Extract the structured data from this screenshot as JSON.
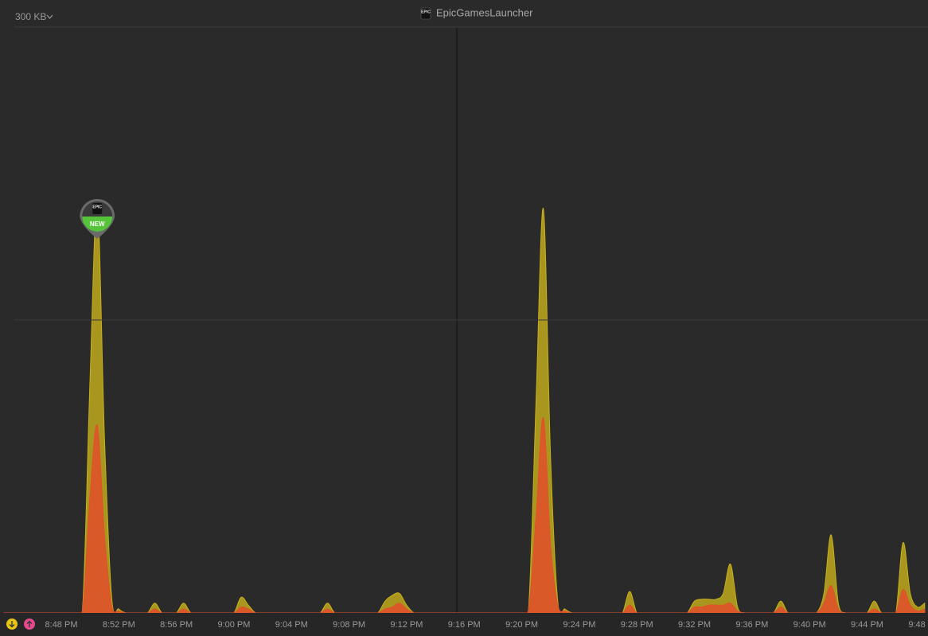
{
  "chart_data": {
    "type": "area",
    "title": "EpicGamesLauncher",
    "title_icon": "EPIC",
    "annotation": {
      "icon": "EPIC",
      "badge": "NEW",
      "index": 13
    },
    "categories": [
      null,
      null,
      null,
      null,
      null,
      null,
      null,
      null,
      "8:48 PM",
      null,
      null,
      null,
      null,
      null,
      null,
      null,
      "8:52 PM",
      null,
      null,
      null,
      null,
      null,
      null,
      null,
      "8:56 PM",
      null,
      null,
      null,
      null,
      null,
      null,
      null,
      "9:00 PM",
      null,
      null,
      null,
      null,
      null,
      null,
      null,
      "9:04 PM",
      null,
      null,
      null,
      null,
      null,
      null,
      null,
      "9:08 PM",
      null,
      null,
      null,
      null,
      null,
      null,
      null,
      "9:12 PM",
      null,
      null,
      null,
      null,
      null,
      null,
      null,
      "9:16 PM",
      null,
      null,
      null,
      null,
      null,
      null,
      null,
      "9:20 PM",
      null,
      null,
      null,
      null,
      null,
      null,
      null,
      "9:24 PM",
      null,
      null,
      null,
      null,
      null,
      null,
      null,
      "9:28 PM",
      null,
      null,
      null,
      null,
      null,
      null,
      null,
      "9:32 PM",
      null,
      null,
      null,
      null,
      null,
      null,
      null,
      "9:36 PM",
      null,
      null,
      null,
      null,
      null,
      null,
      null,
      "9:40 PM",
      null,
      null,
      null,
      null,
      null,
      null,
      null,
      "9:44 PM",
      null,
      null,
      null,
      null,
      null,
      null,
      null,
      "9:48 PM"
    ],
    "series": [
      {
        "color": "#c8b11c",
        "values": [
          0,
          0,
          0,
          0,
          0,
          0,
          0,
          0,
          0,
          0,
          0,
          5,
          120,
          210,
          90,
          8,
          2,
          0,
          0,
          0,
          0,
          5,
          0,
          0,
          0,
          5,
          0,
          0,
          0,
          0,
          0,
          0,
          0,
          8,
          4,
          0,
          0,
          0,
          0,
          0,
          0,
          0,
          0,
          0,
          0,
          5,
          0,
          0,
          0,
          0,
          0,
          0,
          0,
          6,
          9,
          10,
          4,
          0,
          0,
          0,
          0,
          0,
          0,
          0,
          0,
          0,
          0,
          0,
          0,
          0,
          0,
          0,
          0,
          5,
          110,
          207,
          80,
          6,
          2,
          0,
          0,
          0,
          0,
          0,
          0,
          0,
          0,
          11,
          0,
          0,
          0,
          0,
          0,
          0,
          0,
          0,
          6,
          7,
          7,
          7,
          10,
          25,
          3,
          0,
          0,
          0,
          0,
          0,
          6,
          0,
          0,
          0,
          0,
          0,
          10,
          40,
          5,
          0,
          0,
          0,
          0,
          6,
          0,
          0,
          0,
          36,
          10,
          3,
          5
        ]
      },
      {
        "color": "#e2502a",
        "values": [
          0,
          0,
          0,
          0,
          0,
          0,
          0,
          0,
          0,
          0,
          0,
          3,
          60,
          96,
          40,
          4,
          1,
          0,
          0,
          0,
          0,
          2,
          0,
          0,
          0,
          2,
          0,
          0,
          0,
          0,
          0,
          0,
          0,
          3,
          2,
          0,
          0,
          0,
          0,
          0,
          0,
          0,
          0,
          0,
          0,
          2,
          0,
          0,
          0,
          0,
          0,
          0,
          0,
          2,
          3,
          5,
          2,
          0,
          0,
          0,
          0,
          0,
          0,
          0,
          0,
          0,
          0,
          0,
          0,
          0,
          0,
          0,
          0,
          3,
          50,
          100,
          35,
          4,
          1,
          0,
          0,
          0,
          0,
          0,
          0,
          0,
          0,
          4,
          0,
          0,
          0,
          0,
          0,
          0,
          0,
          0,
          3,
          3,
          4,
          4,
          4,
          5,
          1,
          0,
          0,
          0,
          0,
          0,
          3,
          0,
          0,
          0,
          0,
          0,
          5,
          14,
          2,
          0,
          0,
          0,
          0,
          2,
          0,
          0,
          0,
          12,
          4,
          1,
          2
        ]
      }
    ],
    "ylim": [
      0,
      300
    ],
    "yticks": [
      {
        "value": 300,
        "label": "300 KB"
      }
    ],
    "grid": [
      150,
      300
    ]
  }
}
